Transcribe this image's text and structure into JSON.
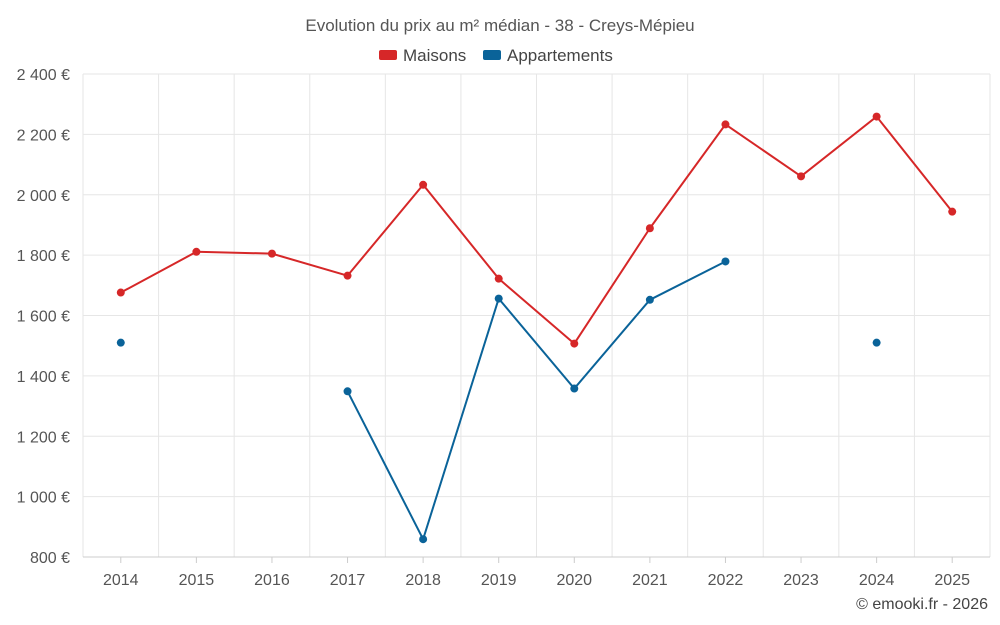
{
  "chart_data": {
    "type": "line",
    "title": "Evolution du prix au m² médian - 38 - Creys-Mépieu",
    "categories": [
      "2014",
      "2015",
      "2016",
      "2017",
      "2018",
      "2019",
      "2020",
      "2021",
      "2022",
      "2023",
      "2024",
      "2025"
    ],
    "ylim": [
      800,
      2400
    ],
    "yticks": [
      800,
      1000,
      1200,
      1400,
      1600,
      1800,
      2000,
      2200,
      2400
    ],
    "ytick_labels": [
      "800 €",
      "1 000 €",
      "1 200 €",
      "1 400 €",
      "1 600 €",
      "1 800 €",
      "2 000 €",
      "2 200 €",
      "2 400 €"
    ],
    "grid": true,
    "legend_position": "top-center",
    "series": [
      {
        "name": "Maisons",
        "color": "#d62728",
        "values": [
          1676,
          1811,
          1805,
          1732,
          2033,
          1722,
          1507,
          1889,
          2233,
          2061,
          2259,
          1944
        ]
      },
      {
        "name": "Appartements",
        "color": "#0a6399",
        "values": [
          1510,
          null,
          null,
          1349,
          859,
          1656,
          1358,
          1652,
          1779,
          null,
          1510,
          null
        ]
      }
    ]
  },
  "credit": "© emooki.fr - 2026"
}
